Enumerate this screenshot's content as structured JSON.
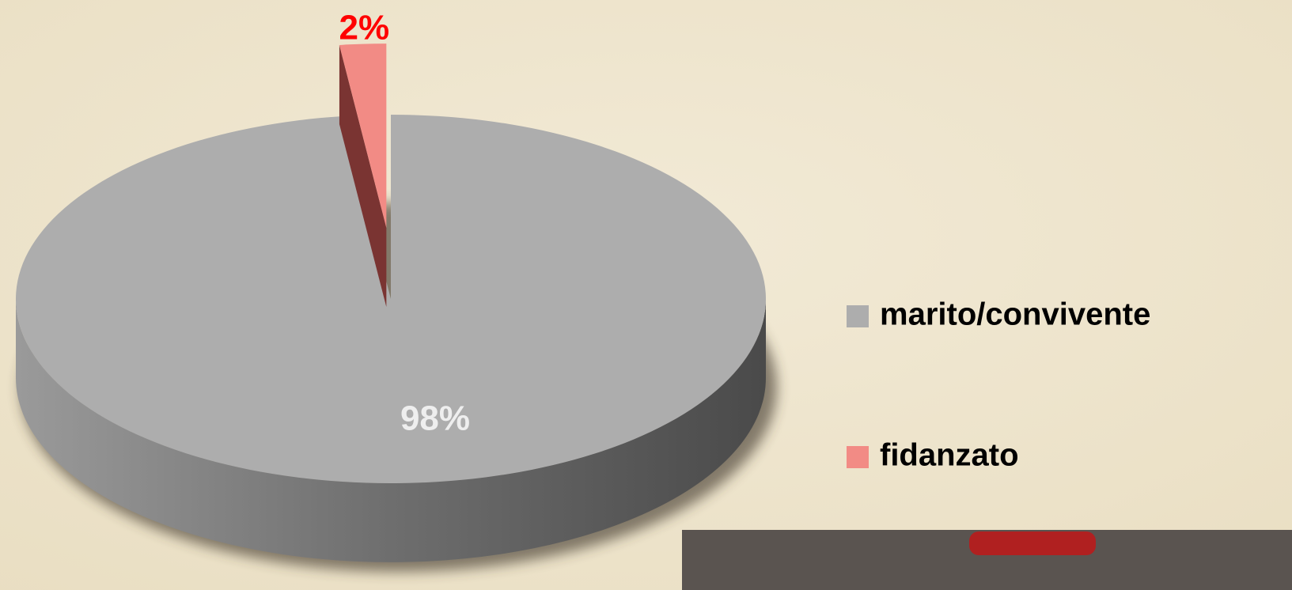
{
  "chart_data": {
    "type": "pie",
    "categories": [
      "marito/convivente",
      "fidanzato"
    ],
    "values": [
      98,
      2
    ],
    "value_labels": [
      "98%",
      "2%"
    ],
    "colors": [
      "#adadad",
      "#f28b85"
    ],
    "legend": "right"
  }
}
